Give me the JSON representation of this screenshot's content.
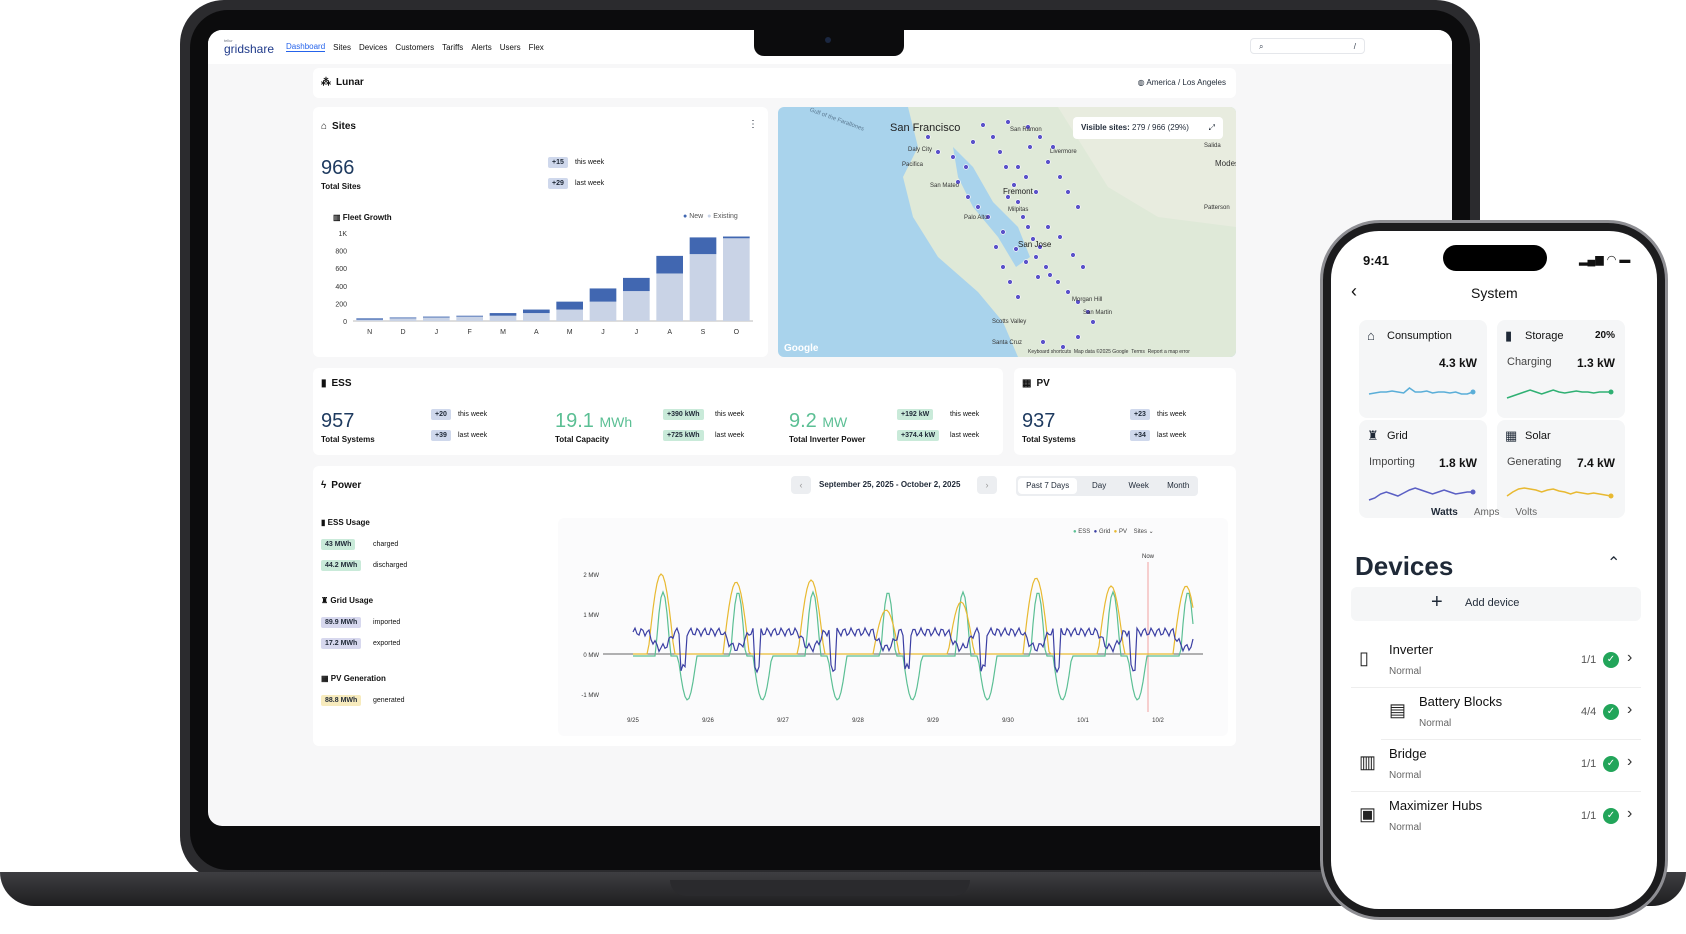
{
  "nav": {
    "logo_small": "tellur",
    "logo": "gridshare",
    "items": [
      "Dashboard",
      "Sites",
      "Devices",
      "Customers",
      "Tariffs",
      "Alerts",
      "Users",
      "Flex"
    ],
    "search_icon": "search-icon",
    "search_hint": "/"
  },
  "header": {
    "org": "Lunar",
    "timezone": "America / Los Angeles"
  },
  "sites": {
    "title": "Sites",
    "total": "966",
    "total_label": "Total Sites",
    "week_badge": "+15",
    "week_label": "this week",
    "last_badge": "+29",
    "last_label": "last week",
    "growth_title": "Fleet Growth",
    "legend_new": "New",
    "legend_existing": "Existing"
  },
  "chart_data": {
    "type": "bar",
    "title": "Fleet Growth",
    "categories": [
      "N",
      "D",
      "J",
      "F",
      "M",
      "A",
      "M",
      "J",
      "J",
      "A",
      "S",
      "O"
    ],
    "series": [
      {
        "name": "Existing",
        "values": [
          15,
          30,
          40,
          50,
          60,
          90,
          130,
          220,
          340,
          540,
          760,
          940
        ]
      },
      {
        "name": "New",
        "values": [
          15,
          10,
          10,
          10,
          30,
          40,
          90,
          150,
          150,
          200,
          190,
          20
        ]
      }
    ],
    "yticks": [
      "0",
      "200",
      "400",
      "600",
      "800",
      "1K"
    ],
    "ylim": [
      0,
      1000
    ],
    "legend": "top-right"
  },
  "map": {
    "visible_label": "Visible sites:",
    "visible_value": "279 / 966 (29%)",
    "city_sf": "San Francisco",
    "places": [
      "Gulf of the Farallones",
      "San Ramon",
      "Salida",
      "Modesto",
      "Daly City",
      "Pacifica",
      "Livermore",
      "Patterson",
      "San Mateo",
      "Palo Alto",
      "Fremont",
      "Milpitas",
      "San Jose",
      "Morgan Hill",
      "San Martin",
      "Scotts Valley",
      "Santa Cruz"
    ],
    "google": "Google",
    "footer": [
      "Keyboard shortcuts",
      "Map data ©2025 Google",
      "Terms",
      "Report a map error"
    ]
  },
  "ess": {
    "title": "ESS",
    "total": "957",
    "total_label": "Total Systems",
    "b1": "+20",
    "b1l": "this week",
    "b2": "+39",
    "b2l": "last week",
    "cap": "19.1",
    "cap_unit": "MWh",
    "cap_label": "Total Capacity",
    "c1": "+390 kWh",
    "c1l": "this week",
    "c2": "+725 kWh",
    "c2l": "last week",
    "inv": "9.2",
    "inv_unit": "MW",
    "inv_label": "Total Inverter Power",
    "i1": "+192 kW",
    "i1l": "this week",
    "i2": "+374.4 kW",
    "i2l": "last week"
  },
  "pv": {
    "title": "PV",
    "total": "937",
    "total_label": "Total Systems",
    "b1": "+23",
    "b1l": "this week",
    "b2": "+34",
    "b2l": "last week"
  },
  "power": {
    "title": "Power",
    "range": "September 25, 2025 - October 2, 2025",
    "tabs": [
      "Past 7 Days",
      "Day",
      "Week",
      "Month"
    ],
    "ess_usage": "ESS Usage",
    "charged": "43 MWh",
    "charged_l": "charged",
    "discharged": "44.2 MWh",
    "discharged_l": "discharged",
    "grid_usage": "Grid Usage",
    "imported": "89.9 MWh",
    "imported_l": "imported",
    "exported": "17.2 MWh",
    "exported_l": "exported",
    "pv_gen": "PV Generation",
    "generated": "88.8 MWh",
    "generated_l": "generated",
    "legend": [
      "ESS",
      "Grid",
      "PV",
      "Sites"
    ],
    "now": "Now",
    "yticks": [
      "2 MW",
      "1 MW",
      "0 MW",
      "-1 MW"
    ],
    "xticks": [
      "9/25",
      "9/26",
      "9/27",
      "9/28",
      "9/29",
      "9/30",
      "10/1",
      "10/2"
    ],
    "colors": {
      "ess": "#5bbf94",
      "grid": "#3b3fa3",
      "pv": "#e8b931"
    }
  },
  "phone": {
    "time": "9:41",
    "title": "System",
    "cards": [
      {
        "label": "Consumption",
        "sub": "",
        "value": "4.3 kW",
        "pct": "",
        "icon": "home-icon"
      },
      {
        "label": "Storage",
        "sub": "Charging",
        "value": "1.3 kW",
        "pct": "20%",
        "icon": "battery-icon"
      },
      {
        "label": "Grid",
        "sub": "Importing",
        "value": "1.8 kW",
        "pct": "",
        "icon": "tower-icon"
      },
      {
        "label": "Solar",
        "sub": "Generating",
        "value": "7.4 kW",
        "pct": "",
        "icon": "solar-panel-icon"
      }
    ],
    "units": [
      "Watts",
      "Amps",
      "Volts"
    ],
    "devices_title": "Devices",
    "add_device": "Add device",
    "devices": [
      {
        "name": "Inverter",
        "status": "Normal",
        "count": "1/1"
      },
      {
        "name": "Battery Blocks",
        "status": "Normal",
        "count": "4/4"
      },
      {
        "name": "Bridge",
        "status": "Normal",
        "count": "1/1"
      },
      {
        "name": "Maximizer Hubs",
        "status": "Normal",
        "count": "1/1"
      }
    ]
  }
}
